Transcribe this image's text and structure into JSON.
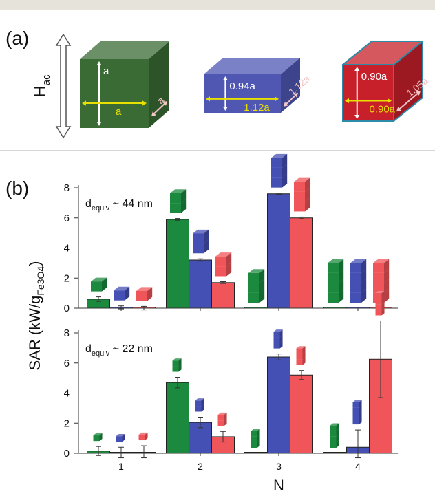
{
  "header": {
    "panel_a": "(a)",
    "panel_b": "(b)"
  },
  "field_label": {
    "main": "H",
    "sub": "ac"
  },
  "cubes": [
    {
      "color": "#3a6b35",
      "labels": {
        "height": "a",
        "width": "a",
        "depth": "a"
      }
    },
    {
      "color": "#4f57b3",
      "labels": {
        "height": "0.94a",
        "width": "1.12a",
        "depth": "1.12a"
      }
    },
    {
      "color": "#c8202a",
      "labels": {
        "height": "0.90a",
        "width": "0.90a",
        "depth": "1.05a"
      }
    }
  ],
  "chart_data": [
    {
      "type": "bar",
      "annotation": {
        "main": "d",
        "sub": "equiv",
        "rest": " ~ 44 nm"
      },
      "categories": [
        "1",
        "2",
        "3",
        "4"
      ],
      "ylim": [
        0,
        8
      ],
      "yticks": [
        "0",
        "2",
        "4",
        "6",
        "8"
      ],
      "series": [
        {
          "color": "#1c8a3e",
          "values": [
            0.6,
            5.9,
            0.0,
            0.0
          ],
          "errors": [
            0.15,
            0.06,
            0.0,
            0.0
          ]
        },
        {
          "color": "#4550b5",
          "values": [
            0.05,
            3.2,
            7.6,
            0.0
          ],
          "errors": [
            0.1,
            0.08,
            0.05,
            0.0
          ]
        },
        {
          "color": "#f0555a",
          "values": [
            0.0,
            1.7,
            6.0,
            0.0
          ],
          "errors": [
            0.12,
            0.06,
            0.06,
            0.0
          ]
        }
      ]
    },
    {
      "type": "bar",
      "annotation": {
        "main": "d",
        "sub": "equiv",
        "rest": " ~ 22 nm"
      },
      "categories": [
        "1",
        "2",
        "3",
        "4"
      ],
      "ylim": [
        0,
        8
      ],
      "yticks": [
        "0",
        "2",
        "4",
        "6",
        "8"
      ],
      "series": [
        {
          "color": "#1c8a3e",
          "values": [
            0.15,
            4.7,
            0.0,
            0.0
          ],
          "errors": [
            0.3,
            0.35,
            0.0,
            0.0
          ]
        },
        {
          "color": "#4550b5",
          "values": [
            0.0,
            2.05,
            6.4,
            0.4
          ],
          "errors": [
            0.4,
            0.35,
            0.2,
            1.15
          ]
        },
        {
          "color": "#f0555a",
          "values": [
            0.05,
            1.1,
            5.2,
            6.25
          ],
          "errors": [
            0.45,
            0.35,
            0.3,
            2.55
          ]
        }
      ]
    }
  ],
  "axes": {
    "ylabel_main": "SAR (kW/g",
    "ylabel_sub": "Fe3O4",
    "ylabel_end": ")",
    "xlabel": "N"
  }
}
